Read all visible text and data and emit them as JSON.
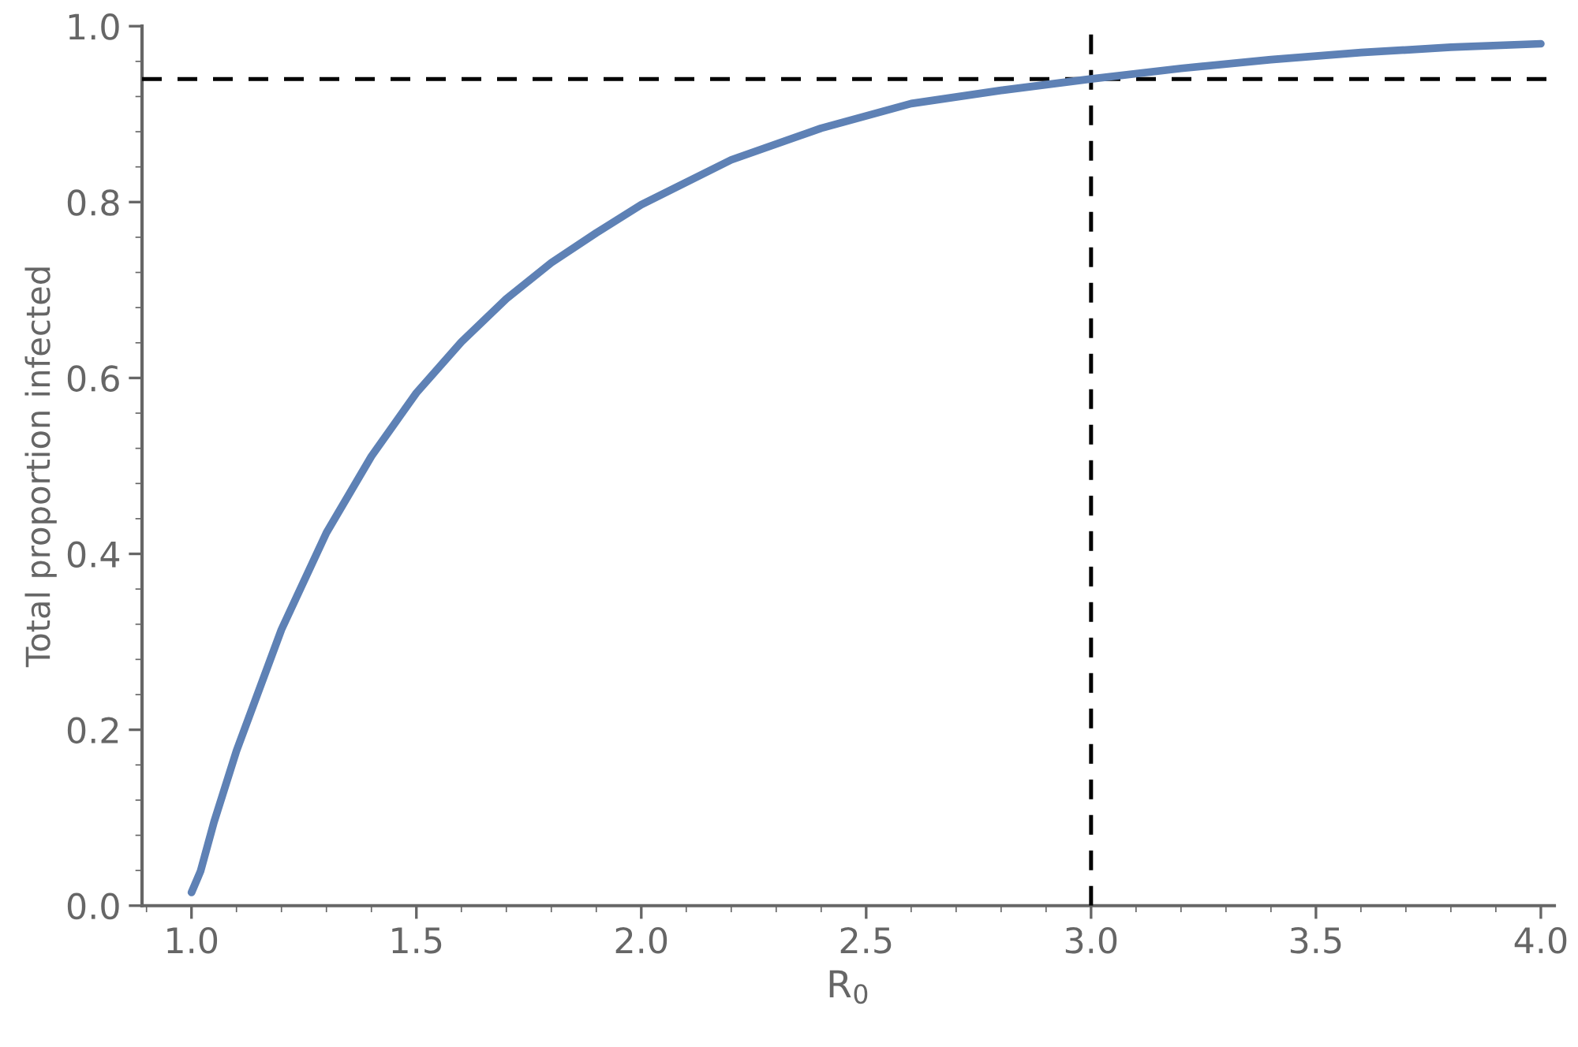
{
  "chart_data": {
    "type": "line",
    "xlabel": "R$_{0}$",
    "ylabel": "Total proportion infected",
    "series": [
      {
        "color": "#5e81b5",
        "x": [
          1.0,
          1.02,
          1.05,
          1.1,
          1.2,
          1.3,
          1.4,
          1.5,
          1.6,
          1.7,
          1.8,
          1.9,
          2.0,
          2.2,
          2.4,
          2.6,
          2.8,
          3.0,
          3.2,
          3.4,
          3.6,
          3.8,
          4.0
        ],
        "values": [
          0.015,
          0.039,
          0.095,
          0.176,
          0.314,
          0.424,
          0.511,
          0.583,
          0.641,
          0.69,
          0.731,
          0.765,
          0.797,
          0.848,
          0.884,
          0.912,
          0.927,
          0.94,
          0.952,
          0.962,
          0.97,
          0.976,
          0.98
        ]
      }
    ],
    "ref_lines": [
      {
        "axis": "y",
        "value": 0.94,
        "color": "#000000",
        "line_style": "dashed"
      },
      {
        "axis": "x",
        "value": 3.0,
        "color": "#000000",
        "line_style": "dashed"
      }
    ],
    "xlim": [
      0.89,
      4.03
    ],
    "ylim": [
      0,
      1.0
    ],
    "xticks": [
      {
        "value": 1,
        "label": "1.0"
      },
      1.5,
      {
        "value": 2,
        "label": "2.0"
      },
      2.5,
      {
        "value": 3,
        "label": "3.0"
      },
      3.5,
      {
        "value": 4,
        "label": "4.0"
      }
    ],
    "yticks": [
      {
        "value": 0,
        "label": "0.0"
      },
      0.2,
      0.4,
      0.6,
      0.8,
      {
        "value": 1,
        "label": "1.0"
      }
    ],
    "grid": false,
    "legend": false,
    "marker": "none",
    "line_style": "solid"
  }
}
